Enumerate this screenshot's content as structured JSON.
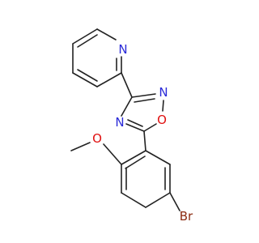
{
  "atoms": {
    "pyridine_n": "N",
    "oxadiazole_n2": "N",
    "oxadiazole_o1": "O",
    "oxadiazole_n4": "N",
    "methoxy_o": "O",
    "bromine": "Br"
  }
}
